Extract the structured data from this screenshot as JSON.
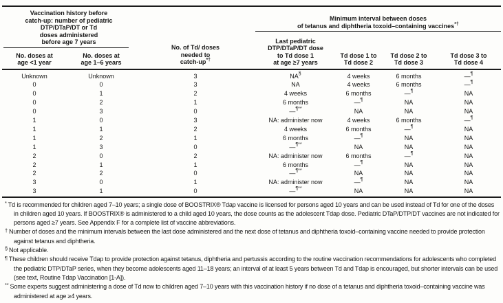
{
  "table": {
    "group_left_title": "Vaccination history before\ncatch-up: number of pediatric\nDTP/DTaP/DT or Td\ndoses administered\nbefore age 7 years",
    "group_right_title": "Minimum interval between doses\nof tetanus and diphtheria toxoid–containing vaccines*†",
    "columns": [
      "No. doses at\nage <1 year",
      "No. doses at\nage 1–6 years",
      "No. of Td/ doses\nneeded to\ncatch-up*†",
      "Last pediatric\nDTP/DTaP/DT dose\nto Td dose 1\nat age ≥7 years",
      "Td dose 1 to\nTd dose 2",
      "Td dose 2 to\nTd dose 3",
      "Td dose 3 to\nTd dose 4"
    ],
    "rows": [
      [
        "Unknown",
        "Unknown",
        "3",
        "NA§",
        "4 weeks",
        "6 months",
        "—¶"
      ],
      [
        "0",
        "0",
        "3",
        "NA",
        "4 weeks",
        "6 months",
        "—¶"
      ],
      [
        "0",
        "1",
        "2",
        "4 weeks",
        "6 months",
        "—¶",
        "NA"
      ],
      [
        "0",
        "2",
        "1",
        "6 months",
        "—¶",
        "NA",
        "NA"
      ],
      [
        "0",
        "3",
        "0",
        "—¶**",
        "NA",
        "NA",
        "NA"
      ],
      [
        "1",
        "0",
        "3",
        "NA: administer now",
        "4 weeks",
        "6 months",
        "—¶"
      ],
      [
        "1",
        "1",
        "2",
        "4 weeks",
        "6 months",
        "—¶",
        "NA"
      ],
      [
        "1",
        "2",
        "1",
        "6 months",
        "—¶",
        "NA",
        "NA"
      ],
      [
        "1",
        "3",
        "0",
        "—¶**",
        "NA",
        "NA",
        "NA"
      ],
      [
        "2",
        "0",
        "2",
        "NA: administer now",
        "6 months",
        "—¶",
        "NA"
      ],
      [
        "2",
        "1",
        "1",
        "6 months",
        "—¶",
        "NA",
        "NA"
      ],
      [
        "2",
        "2",
        "0",
        "—¶**",
        "NA",
        "NA",
        "NA"
      ],
      [
        "3",
        "0",
        "1",
        "NA: administer now",
        "—¶",
        "NA",
        "NA"
      ],
      [
        "3",
        "1",
        "0",
        "—¶**",
        "NA",
        "NA",
        "NA"
      ]
    ]
  },
  "footnotes": [
    {
      "marker": "*",
      "text": "Td is recommended for children aged 7–10 years; a single dose of BOOSTRIX® Tdap vaccine is licensed for persons aged 10 years and can be used instead of Td for one of the doses in children aged 10 years. If BOOSTRIX® is administered to a child aged 10 years, the dose counts as the adolescent Tdap dose. Pediatric DTaP/DTP/DT vaccines are not indicated for persons aged ≥7 years. See Appendix F for a complete list of vaccine abbreviations."
    },
    {
      "marker": "†",
      "text": "Number of doses and the minimum intervals between the last dose administered and the next dose of tetanus and diphtheria toxoid–containing vaccine needed to provide protection against tetanus and diphtheria."
    },
    {
      "marker": "§",
      "text": "Not applicable."
    },
    {
      "marker": "¶",
      "text": "These children should receive Tdap to provide protection against tetanus, diphtheria and pertussis according to the routine vaccination recommendations for adolescents who completed the pediatric DTP/DTaP series, when they become adolescents aged 11–18 years; an interval of at least 5 years between Td and Tdap is encouraged, but shorter intervals can be used (see text, Routine Tdap Vaccination [1-A])."
    },
    {
      "marker": "**",
      "text": "Some experts suggest administering a dose of Td now to children aged 7–10 years with this vaccination history if no dose of a tetanus and diphtheria toxoid–containing vaccine was administered at age ≥4 years."
    }
  ],
  "colors": {
    "text": "#151515",
    "background": "#fdfdfb",
    "rule": "#1b1b1b"
  }
}
